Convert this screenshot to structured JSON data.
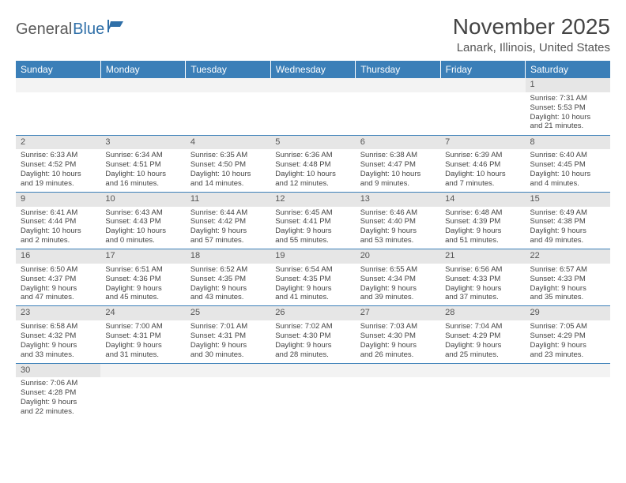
{
  "logo": {
    "general": "General",
    "blue": "Blue"
  },
  "title": "November 2025",
  "location": "Lanark, Illinois, United States",
  "colors": {
    "header_bg": "#3b7fb8",
    "header_text": "#ffffff",
    "daynum_bg": "#e6e6e6",
    "border": "#3b7fb8",
    "logo_blue": "#2f6fa8",
    "logo_gray": "#5a5a5a"
  },
  "day_headers": [
    "Sunday",
    "Monday",
    "Tuesday",
    "Wednesday",
    "Thursday",
    "Friday",
    "Saturday"
  ],
  "weeks": [
    [
      {
        "num": "",
        "lines": []
      },
      {
        "num": "",
        "lines": []
      },
      {
        "num": "",
        "lines": []
      },
      {
        "num": "",
        "lines": []
      },
      {
        "num": "",
        "lines": []
      },
      {
        "num": "",
        "lines": []
      },
      {
        "num": "1",
        "lines": [
          "Sunrise: 7:31 AM",
          "Sunset: 5:53 PM",
          "Daylight: 10 hours",
          "and 21 minutes."
        ]
      }
    ],
    [
      {
        "num": "2",
        "lines": [
          "Sunrise: 6:33 AM",
          "Sunset: 4:52 PM",
          "Daylight: 10 hours",
          "and 19 minutes."
        ]
      },
      {
        "num": "3",
        "lines": [
          "Sunrise: 6:34 AM",
          "Sunset: 4:51 PM",
          "Daylight: 10 hours",
          "and 16 minutes."
        ]
      },
      {
        "num": "4",
        "lines": [
          "Sunrise: 6:35 AM",
          "Sunset: 4:50 PM",
          "Daylight: 10 hours",
          "and 14 minutes."
        ]
      },
      {
        "num": "5",
        "lines": [
          "Sunrise: 6:36 AM",
          "Sunset: 4:48 PM",
          "Daylight: 10 hours",
          "and 12 minutes."
        ]
      },
      {
        "num": "6",
        "lines": [
          "Sunrise: 6:38 AM",
          "Sunset: 4:47 PM",
          "Daylight: 10 hours",
          "and 9 minutes."
        ]
      },
      {
        "num": "7",
        "lines": [
          "Sunrise: 6:39 AM",
          "Sunset: 4:46 PM",
          "Daylight: 10 hours",
          "and 7 minutes."
        ]
      },
      {
        "num": "8",
        "lines": [
          "Sunrise: 6:40 AM",
          "Sunset: 4:45 PM",
          "Daylight: 10 hours",
          "and 4 minutes."
        ]
      }
    ],
    [
      {
        "num": "9",
        "lines": [
          "Sunrise: 6:41 AM",
          "Sunset: 4:44 PM",
          "Daylight: 10 hours",
          "and 2 minutes."
        ]
      },
      {
        "num": "10",
        "lines": [
          "Sunrise: 6:43 AM",
          "Sunset: 4:43 PM",
          "Daylight: 10 hours",
          "and 0 minutes."
        ]
      },
      {
        "num": "11",
        "lines": [
          "Sunrise: 6:44 AM",
          "Sunset: 4:42 PM",
          "Daylight: 9 hours",
          "and 57 minutes."
        ]
      },
      {
        "num": "12",
        "lines": [
          "Sunrise: 6:45 AM",
          "Sunset: 4:41 PM",
          "Daylight: 9 hours",
          "and 55 minutes."
        ]
      },
      {
        "num": "13",
        "lines": [
          "Sunrise: 6:46 AM",
          "Sunset: 4:40 PM",
          "Daylight: 9 hours",
          "and 53 minutes."
        ]
      },
      {
        "num": "14",
        "lines": [
          "Sunrise: 6:48 AM",
          "Sunset: 4:39 PM",
          "Daylight: 9 hours",
          "and 51 minutes."
        ]
      },
      {
        "num": "15",
        "lines": [
          "Sunrise: 6:49 AM",
          "Sunset: 4:38 PM",
          "Daylight: 9 hours",
          "and 49 minutes."
        ]
      }
    ],
    [
      {
        "num": "16",
        "lines": [
          "Sunrise: 6:50 AM",
          "Sunset: 4:37 PM",
          "Daylight: 9 hours",
          "and 47 minutes."
        ]
      },
      {
        "num": "17",
        "lines": [
          "Sunrise: 6:51 AM",
          "Sunset: 4:36 PM",
          "Daylight: 9 hours",
          "and 45 minutes."
        ]
      },
      {
        "num": "18",
        "lines": [
          "Sunrise: 6:52 AM",
          "Sunset: 4:35 PM",
          "Daylight: 9 hours",
          "and 43 minutes."
        ]
      },
      {
        "num": "19",
        "lines": [
          "Sunrise: 6:54 AM",
          "Sunset: 4:35 PM",
          "Daylight: 9 hours",
          "and 41 minutes."
        ]
      },
      {
        "num": "20",
        "lines": [
          "Sunrise: 6:55 AM",
          "Sunset: 4:34 PM",
          "Daylight: 9 hours",
          "and 39 minutes."
        ]
      },
      {
        "num": "21",
        "lines": [
          "Sunrise: 6:56 AM",
          "Sunset: 4:33 PM",
          "Daylight: 9 hours",
          "and 37 minutes."
        ]
      },
      {
        "num": "22",
        "lines": [
          "Sunrise: 6:57 AM",
          "Sunset: 4:33 PM",
          "Daylight: 9 hours",
          "and 35 minutes."
        ]
      }
    ],
    [
      {
        "num": "23",
        "lines": [
          "Sunrise: 6:58 AM",
          "Sunset: 4:32 PM",
          "Daylight: 9 hours",
          "and 33 minutes."
        ]
      },
      {
        "num": "24",
        "lines": [
          "Sunrise: 7:00 AM",
          "Sunset: 4:31 PM",
          "Daylight: 9 hours",
          "and 31 minutes."
        ]
      },
      {
        "num": "25",
        "lines": [
          "Sunrise: 7:01 AM",
          "Sunset: 4:31 PM",
          "Daylight: 9 hours",
          "and 30 minutes."
        ]
      },
      {
        "num": "26",
        "lines": [
          "Sunrise: 7:02 AM",
          "Sunset: 4:30 PM",
          "Daylight: 9 hours",
          "and 28 minutes."
        ]
      },
      {
        "num": "27",
        "lines": [
          "Sunrise: 7:03 AM",
          "Sunset: 4:30 PM",
          "Daylight: 9 hours",
          "and 26 minutes."
        ]
      },
      {
        "num": "28",
        "lines": [
          "Sunrise: 7:04 AM",
          "Sunset: 4:29 PM",
          "Daylight: 9 hours",
          "and 25 minutes."
        ]
      },
      {
        "num": "29",
        "lines": [
          "Sunrise: 7:05 AM",
          "Sunset: 4:29 PM",
          "Daylight: 9 hours",
          "and 23 minutes."
        ]
      }
    ],
    [
      {
        "num": "30",
        "lines": [
          "Sunrise: 7:06 AM",
          "Sunset: 4:28 PM",
          "Daylight: 9 hours",
          "and 22 minutes."
        ]
      },
      {
        "num": "",
        "lines": []
      },
      {
        "num": "",
        "lines": []
      },
      {
        "num": "",
        "lines": []
      },
      {
        "num": "",
        "lines": []
      },
      {
        "num": "",
        "lines": []
      },
      {
        "num": "",
        "lines": []
      }
    ]
  ]
}
